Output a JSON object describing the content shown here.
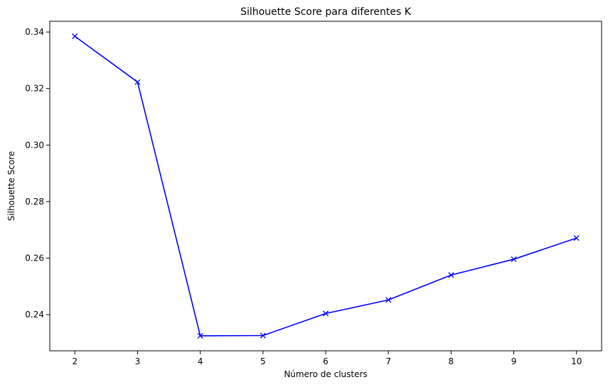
{
  "chart_data": {
    "type": "line",
    "title": "Silhouette Score para diferentes K",
    "xlabel": "Número de clusters",
    "ylabel": "Silhouette Score",
    "x": [
      2,
      3,
      4,
      5,
      6,
      7,
      8,
      9,
      10
    ],
    "series": [
      {
        "values": [
          0.3385,
          0.3223,
          0.2325,
          0.2326,
          0.2404,
          0.2452,
          0.254,
          0.2596,
          0.2671
        ],
        "color": "#0000ff",
        "marker": "x"
      }
    ],
    "xticks": [
      "2",
      "3",
      "4",
      "5",
      "6",
      "7",
      "8",
      "9",
      "10"
    ],
    "yticks": [
      "0.24",
      "0.26",
      "0.28",
      "0.30",
      "0.32",
      "0.34"
    ],
    "xlim": [
      1.6,
      10.4
    ],
    "ylim": [
      0.2272,
      0.3438
    ],
    "grid": false,
    "legend": "none"
  }
}
